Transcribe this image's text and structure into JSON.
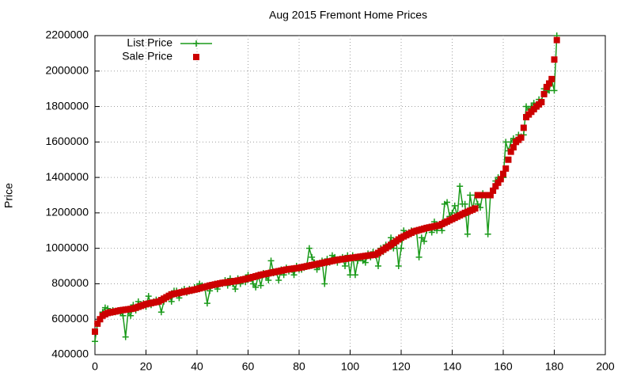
{
  "chart_data": {
    "type": "scatter",
    "title": "Aug 2015 Fremont Home Prices",
    "y_label": "Price",
    "x": [
      0,
      1,
      2,
      3,
      4,
      5,
      6,
      7,
      8,
      9,
      10,
      11,
      12,
      13,
      14,
      15,
      16,
      17,
      18,
      19,
      20,
      21,
      22,
      23,
      24,
      25,
      26,
      27,
      28,
      29,
      30,
      31,
      32,
      33,
      34,
      35,
      36,
      37,
      38,
      39,
      40,
      41,
      42,
      43,
      44,
      45,
      46,
      47,
      48,
      49,
      50,
      51,
      52,
      53,
      54,
      55,
      56,
      57,
      58,
      59,
      60,
      61,
      62,
      63,
      64,
      65,
      66,
      67,
      68,
      69,
      70,
      71,
      72,
      73,
      74,
      75,
      76,
      77,
      78,
      79,
      80,
      81,
      82,
      83,
      84,
      85,
      86,
      87,
      88,
      89,
      90,
      91,
      92,
      93,
      94,
      95,
      96,
      97,
      98,
      99,
      100,
      101,
      102,
      103,
      104,
      105,
      106,
      107,
      108,
      109,
      110,
      111,
      112,
      113,
      114,
      115,
      116,
      117,
      118,
      119,
      120,
      121,
      122,
      123,
      124,
      125,
      126,
      127,
      128,
      129,
      130,
      131,
      132,
      133,
      134,
      135,
      136,
      137,
      138,
      139,
      140,
      141,
      142,
      143,
      144,
      145,
      146,
      147,
      148,
      149,
      150,
      151,
      152,
      153,
      154,
      155,
      156,
      157,
      158,
      159,
      160,
      161,
      162,
      163,
      164,
      165,
      166,
      167,
      168,
      169,
      170,
      171,
      172,
      173,
      174,
      175,
      176,
      177,
      178,
      179,
      180,
      181
    ],
    "series": [
      {
        "name": "List Price",
        "color": "#1a9a1a",
        "mode": "linespoints",
        "values": [
          475000,
          575000,
          600000,
          640000,
          665000,
          660000,
          640000,
          650000,
          640000,
          645000,
          640000,
          620000,
          500000,
          640000,
          620000,
          680000,
          650000,
          700000,
          670000,
          690000,
          670000,
          730000,
          680000,
          700000,
          710000,
          700000,
          640000,
          700000,
          730000,
          740000,
          700000,
          760000,
          760000,
          720000,
          760000,
          770000,
          750000,
          770000,
          760000,
          780000,
          780000,
          800000,
          790000,
          780000,
          690000,
          760000,
          790000,
          800000,
          770000,
          800000,
          800000,
          820000,
          790000,
          830000,
          800000,
          770000,
          830000,
          800000,
          820000,
          810000,
          850000,
          830000,
          800000,
          780000,
          850000,
          790000,
          860000,
          840000,
          820000,
          930000,
          860000,
          870000,
          820000,
          880000,
          850000,
          890000,
          870000,
          880000,
          850000,
          900000,
          880000,
          880000,
          890000,
          900000,
          1000000,
          950000,
          920000,
          880000,
          900000,
          930000,
          800000,
          940000,
          920000,
          960000,
          950000,
          920000,
          940000,
          950000,
          900000,
          960000,
          850000,
          960000,
          850000,
          930000,
          950000,
          930000,
          920000,
          970000,
          950000,
          980000,
          960000,
          900000,
          1000000,
          980000,
          1020000,
          1010000,
          1060000,
          1000000,
          1050000,
          900000,
          1000000,
          1100000,
          1080000,
          1090000,
          1100000,
          1090000,
          1100000,
          950000,
          1060000,
          1040000,
          1100000,
          1120000,
          1090000,
          1150000,
          1100000,
          1130000,
          1100000,
          1250000,
          1260000,
          1180000,
          1200000,
          1240000,
          1180000,
          1350000,
          1250000,
          1250000,
          1080000,
          1300000,
          1220000,
          1300000,
          1250000,
          1230000,
          1310000,
          1300000,
          1080000,
          1300000,
          1330000,
          1380000,
          1400000,
          1400000,
          1400000,
          1600000,
          1550000,
          1600000,
          1620000,
          1600000,
          1640000,
          1630000,
          1640000,
          1800000,
          1780000,
          1800000,
          1820000,
          1790000,
          1840000,
          1830000,
          1900000,
          1880000,
          1890000,
          1950000,
          1890000,
          2200000
        ]
      },
      {
        "name": "Sale Price",
        "color": "#cc0000",
        "mode": "points",
        "values": [
          530000,
          575000,
          600000,
          620000,
          628000,
          635000,
          638000,
          641000,
          644000,
          647000,
          650000,
          652000,
          654000,
          656000,
          658000,
          660000,
          665000,
          670000,
          675000,
          680000,
          685000,
          688000,
          691000,
          694000,
          697000,
          700000,
          708000,
          716000,
          724000,
          732000,
          740000,
          743000,
          746000,
          749000,
          752000,
          755000,
          758000,
          761000,
          764000,
          767000,
          770000,
          774000,
          778000,
          782000,
          786000,
          790000,
          793000,
          796000,
          799000,
          802000,
          805000,
          807000,
          809000,
          811000,
          813000,
          815000,
          818000,
          821000,
          824000,
          827000,
          830000,
          834000,
          838000,
          842000,
          846000,
          850000,
          853000,
          856000,
          859000,
          862000,
          865000,
          868000,
          871000,
          874000,
          877000,
          880000,
          882000,
          884000,
          886000,
          888000,
          890000,
          893000,
          896000,
          899000,
          902000,
          905000,
          908000,
          911000,
          914000,
          917000,
          920000,
          923000,
          926000,
          929000,
          932000,
          935000,
          937000,
          939000,
          941000,
          943000,
          945000,
          947000,
          949000,
          951000,
          953000,
          955000,
          957000,
          959000,
          961000,
          963000,
          965000,
          974000,
          983000,
          992000,
          1001000,
          1010000,
          1020000,
          1030000,
          1040000,
          1050000,
          1060000,
          1067000,
          1074000,
          1081000,
          1088000,
          1095000,
          1099000,
          1103000,
          1107000,
          1111000,
          1115000,
          1118000,
          1121000,
          1124000,
          1127000,
          1130000,
          1137000,
          1144000,
          1151000,
          1158000,
          1165000,
          1172000,
          1179000,
          1186000,
          1193000,
          1200000,
          1206000,
          1212000,
          1218000,
          1225000,
          1300000,
          1300000,
          1300000,
          1300000,
          1300000,
          1300000,
          1325000,
          1350000,
          1370000,
          1390000,
          1420000,
          1450000,
          1500000,
          1545000,
          1570000,
          1600000,
          1612000,
          1625000,
          1680000,
          1740000,
          1755000,
          1770000,
          1785000,
          1800000,
          1812000,
          1825000,
          1870000,
          1910000,
          1930000,
          1955000,
          2065000,
          2175000
        ]
      }
    ],
    "xlim": [
      0,
      200
    ],
    "xticks": [
      0,
      20,
      40,
      60,
      80,
      100,
      120,
      140,
      160,
      180,
      200
    ],
    "ylim": [
      400000,
      2200000
    ],
    "yticks": [
      400000,
      600000,
      800000,
      1000000,
      1200000,
      1400000,
      1600000,
      1800000,
      2000000,
      2200000
    ],
    "grid": true,
    "legend": "top-left"
  }
}
